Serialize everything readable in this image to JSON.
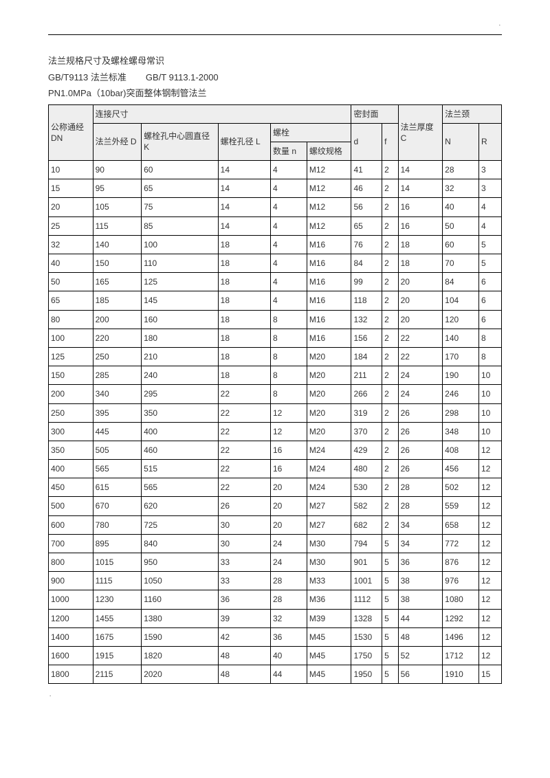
{
  "header": {
    "line1": "法兰规格尺寸及螺栓螺母常识",
    "line2a": "GB/T9113 法兰标准",
    "line2b": "GB/T 9113.1-2000",
    "line3": "PN1.0MPa（10bar)突面整体钢制管法兰"
  },
  "thead": {
    "group_conn": "连接尺寸",
    "group_seal": "密封面",
    "group_neck": "法兰颈",
    "dn": "公称通经 DN",
    "d": "法兰外经 D",
    "k": "螺栓孔中心圆直径 K",
    "l": "螺栓孔径 L",
    "bolt": "螺栓",
    "n": "数量 n",
    "spec": "螺纹规格",
    "small_d": "d",
    "f": "f",
    "c": "法兰厚度 C",
    "nn": "N",
    "r": "R"
  },
  "rows": [
    [
      "10",
      "90",
      "60",
      "14",
      "4",
      "M12",
      "41",
      "2",
      "14",
      "28",
      "3"
    ],
    [
      "15",
      "95",
      "65",
      "14",
      "4",
      "M12",
      "46",
      "2",
      "14",
      "32",
      "3"
    ],
    [
      "20",
      "105",
      "75",
      "14",
      "4",
      "M12",
      "56",
      "2",
      "16",
      "40",
      "4"
    ],
    [
      "25",
      "115",
      "85",
      "14",
      "4",
      "M12",
      "65",
      "2",
      "16",
      "50",
      "4"
    ],
    [
      "32",
      "140",
      "100",
      "18",
      "4",
      "M16",
      "76",
      "2",
      "18",
      "60",
      "5"
    ],
    [
      "40",
      "150",
      "110",
      "18",
      "4",
      "M16",
      "84",
      "2",
      "18",
      "70",
      "5"
    ],
    [
      "50",
      "165",
      "125",
      "18",
      "4",
      "M16",
      "99",
      "2",
      "20",
      "84",
      "6"
    ],
    [
      "65",
      "185",
      "145",
      "18",
      "4",
      "M16",
      "118",
      "2",
      "20",
      "104",
      "6"
    ],
    [
      "80",
      "200",
      "160",
      "18",
      "8",
      "M16",
      "132",
      "2",
      "20",
      "120",
      "6"
    ],
    [
      "100",
      "220",
      "180",
      "18",
      "8",
      "M16",
      "156",
      "2",
      "22",
      "140",
      "8"
    ],
    [
      "125",
      "250",
      "210",
      "18",
      "8",
      "M20",
      "184",
      "2",
      "22",
      "170",
      "8"
    ],
    [
      "150",
      "285",
      "240",
      "18",
      "8",
      "M20",
      "211",
      "2",
      "24",
      "190",
      "10"
    ],
    [
      "200",
      "340",
      "295",
      "22",
      "8",
      "M20",
      "266",
      "2",
      "24",
      "246",
      "10"
    ],
    [
      "250",
      "395",
      "350",
      "22",
      "12",
      "M20",
      "319",
      "2",
      "26",
      "298",
      "10"
    ],
    [
      "300",
      "445",
      "400",
      "22",
      "12",
      "M20",
      "370",
      "2",
      "26",
      "348",
      "10"
    ],
    [
      "350",
      "505",
      "460",
      "22",
      "16",
      "M24",
      "429",
      "2",
      "26",
      "408",
      "12"
    ],
    [
      "400",
      "565",
      "515",
      "22",
      "16",
      "M24",
      "480",
      "2",
      "26",
      "456",
      "12"
    ],
    [
      "450",
      "615",
      "565",
      "22",
      "20",
      "M24",
      "530",
      "2",
      "28",
      "502",
      "12"
    ],
    [
      "500",
      "670",
      "620",
      "26",
      "20",
      "M27",
      "582",
      "2",
      "28",
      "559",
      "12"
    ],
    [
      "600",
      "780",
      "725",
      "30",
      "20",
      "M27",
      "682",
      "2",
      "34",
      "658",
      "12"
    ],
    [
      "700",
      "895",
      "840",
      "30",
      "24",
      "M30",
      "794",
      "5",
      "34",
      "772",
      "12"
    ],
    [
      "800",
      "1015",
      "950",
      "33",
      "24",
      "M30",
      "901",
      "5",
      "36",
      "876",
      "12"
    ],
    [
      "900",
      "1115",
      "1050",
      "33",
      "28",
      "M33",
      "1001",
      "5",
      "38",
      "976",
      "12"
    ],
    [
      "1000",
      "1230",
      "1160",
      "36",
      "28",
      "M36",
      "1112",
      "5",
      "38",
      "1080",
      "12"
    ],
    [
      "1200",
      "1455",
      "1380",
      "39",
      "32",
      "M39",
      "1328",
      "5",
      "44",
      "1292",
      "12"
    ],
    [
      "1400",
      "1675",
      "1590",
      "42",
      "36",
      "M45",
      "1530",
      "5",
      "48",
      "1496",
      "12"
    ],
    [
      "1600",
      "1915",
      "1820",
      "48",
      "40",
      "M45",
      "1750",
      "5",
      "52",
      "1712",
      "12"
    ],
    [
      "1800",
      "2115",
      "2020",
      "48",
      "44",
      "M45",
      "1950",
      "5",
      "56",
      "1910",
      "15"
    ]
  ]
}
